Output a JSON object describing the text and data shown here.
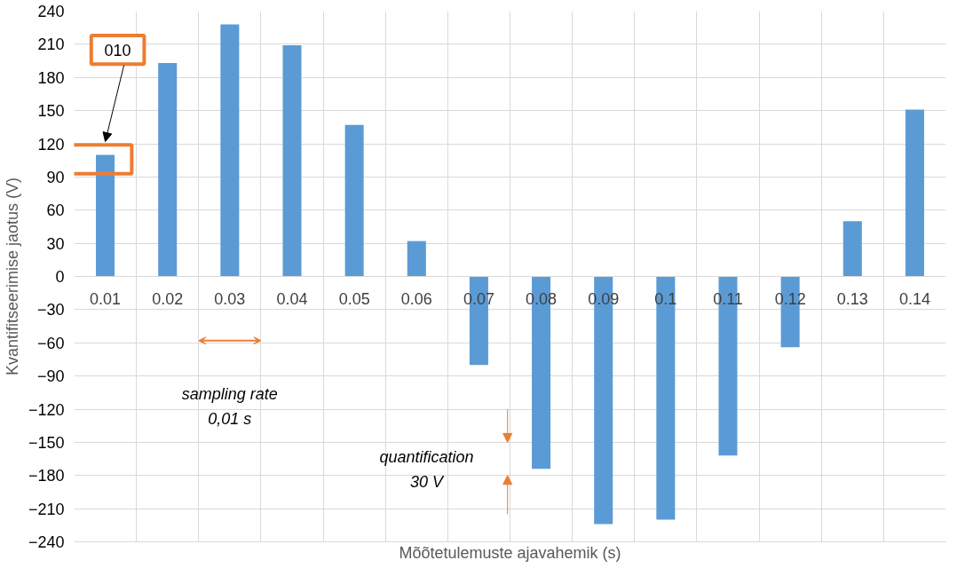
{
  "chart_data": {
    "type": "bar",
    "xlabel": "Mõõtetulemuste ajavahemik (s)",
    "ylabel": "Kvantifitseerimise jaotus (V)",
    "categories": [
      "0.01",
      "0.02",
      "0.03",
      "0.04",
      "0.05",
      "0.06",
      "0.07",
      "0.08",
      "0.09",
      "0.1",
      "0.11",
      "0.12",
      "0.13",
      "0.14"
    ],
    "series": [
      {
        "color": "#5b9bd5",
        "values": [
          110,
          193,
          228,
          209,
          137,
          32,
          -80,
          -174,
          -224,
          -220,
          -162,
          -64,
          50,
          151
        ]
      }
    ],
    "ylim": [
      -240,
      240
    ],
    "yticks": [
      -240,
      -210,
      -180,
      -150,
      -120,
      -90,
      -60,
      -30,
      0,
      30,
      60,
      90,
      120,
      150,
      180,
      210,
      240
    ],
    "grid": true,
    "annotations": [
      "010",
      "sampling rate\n0,01 s",
      "quantification\n30 V"
    ]
  }
}
